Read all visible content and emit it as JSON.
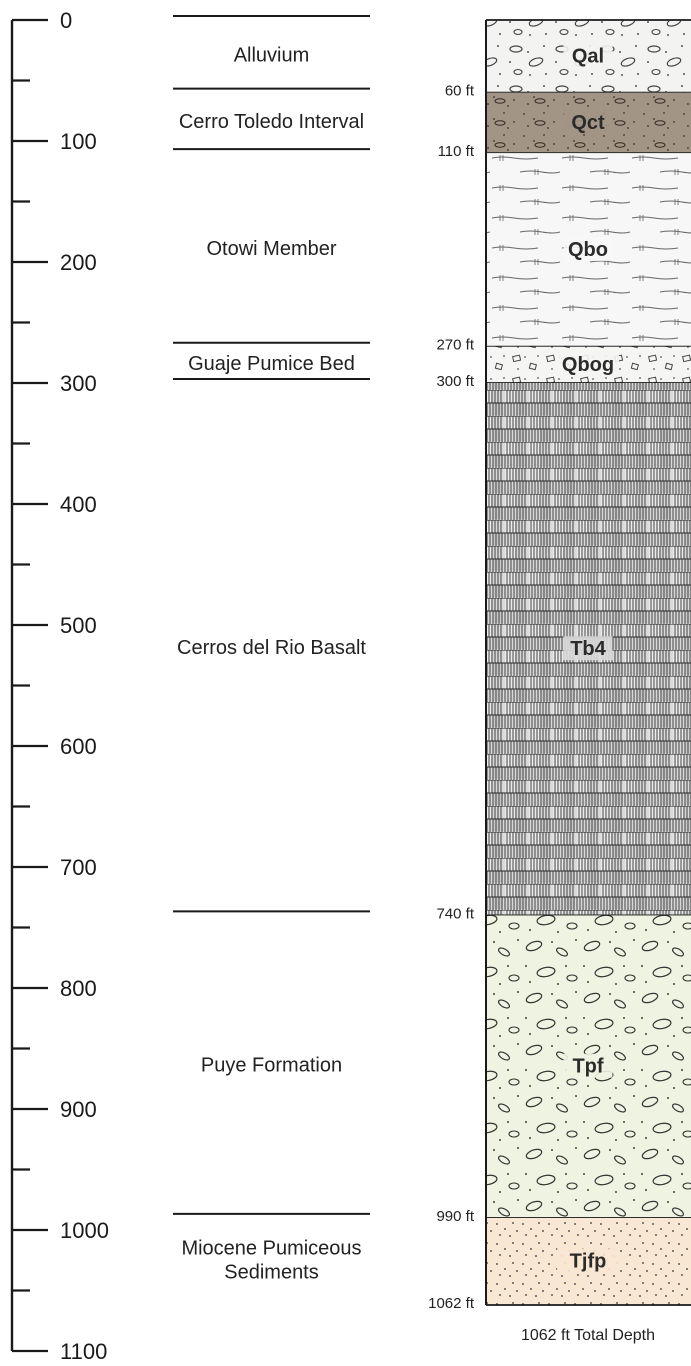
{
  "scale": {
    "unit": "ft",
    "ticks_major": [
      0,
      100,
      200,
      300,
      400,
      500,
      600,
      700,
      800,
      900,
      1000,
      1100
    ],
    "minor_step": 50,
    "labels": [
      "0",
      "100",
      "200",
      "300",
      "400",
      "500",
      "600",
      "700",
      "800",
      "900",
      "1000",
      "1100"
    ]
  },
  "formations": [
    {
      "name": "Alluvium",
      "top": 0,
      "bottom": 60
    },
    {
      "name": "Cerro Toledo Interval",
      "top": 60,
      "bottom": 110
    },
    {
      "name": "Otowi Member",
      "top": 110,
      "bottom": 270
    },
    {
      "name": "Guaje Pumice Bed",
      "top": 270,
      "bottom": 300
    },
    {
      "name": "Cerros del Rio Basalt",
      "top": 300,
      "bottom": 740
    },
    {
      "name": "Puye Formation",
      "top": 740,
      "bottom": 990
    },
    {
      "name": "Miocene Pumiceous Sediments",
      "name_lines": [
        "Miocene Pumiceous",
        "Sediments"
      ],
      "top": 990,
      "bottom": 1062
    }
  ],
  "boundary_depth_labels": [
    "60 ft",
    "110 ft",
    "270 ft",
    "300 ft",
    "740 ft",
    "990 ft",
    "1062 ft"
  ],
  "column_units": [
    {
      "code": "Qal",
      "top": 0,
      "bottom": 60,
      "pattern": "gravel",
      "color": "#f3f3f1"
    },
    {
      "code": "Qct",
      "top": 60,
      "bottom": 110,
      "pattern": "tuff-dark",
      "color": "#a29585"
    },
    {
      "code": "Qbo",
      "top": 110,
      "bottom": 270,
      "pattern": "welded-tuff",
      "color": "#f7f7f7"
    },
    {
      "code": "Qbog",
      "top": 270,
      "bottom": 300,
      "pattern": "pumice",
      "color": "#f5f5f3"
    },
    {
      "code": "Tb4",
      "top": 300,
      "bottom": 740,
      "pattern": "basalt",
      "color": "#d9d9d9"
    },
    {
      "code": "Tpf",
      "top": 740,
      "bottom": 990,
      "pattern": "conglomerate",
      "color": "#eef3e2"
    },
    {
      "code": "Tjfp",
      "top": 990,
      "bottom": 1062,
      "pattern": "sediments",
      "color": "#f8e7d3"
    }
  ],
  "total_depth_label": "1062 ft Total Depth",
  "colors": {
    "line": "#1a1a1a",
    "gravel_fill": "#f3f3f1",
    "tuff_dark": "#a29585",
    "basalt_fill": "#d9d9d9",
    "conglomerate_fill": "#eef3e2",
    "sediment_fill": "#f8e7d3"
  }
}
